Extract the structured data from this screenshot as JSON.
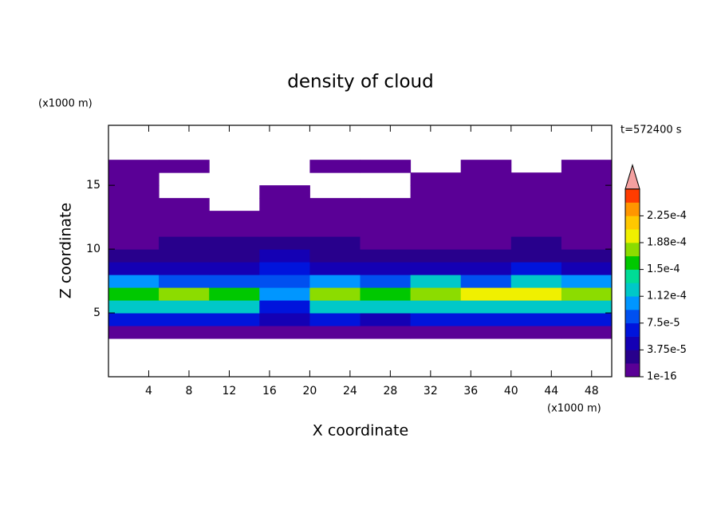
{
  "chart_data": {
    "type": "contour",
    "title": "density of cloud",
    "x_label": "X coordinate",
    "y_label": "Z coordinate",
    "x_unit": "(x1000 m)",
    "y_unit": "(x1000 m)",
    "annotation": "t=572400 s",
    "xlim": [
      0,
      50
    ],
    "ylim": [
      0,
      19.7
    ],
    "xticks": [
      4,
      8,
      12,
      16,
      20,
      24,
      28,
      32,
      36,
      40,
      44,
      48
    ],
    "yticks": [
      5,
      10,
      15
    ],
    "x": [
      2.5,
      7.5,
      12.5,
      17.5,
      22.5,
      27.5,
      32.5,
      37.5,
      42.5,
      47.5
    ],
    "y": [
      3.5,
      4.5,
      5.5,
      6.5,
      7.5,
      8.5,
      9.5,
      10.5,
      11.5,
      12.5,
      13.5,
      14.5,
      15.5,
      16.5
    ],
    "z": [
      [
        8e-06,
        8e-06,
        8e-06,
        8e-06,
        8e-06,
        8e-06,
        8e-06,
        8e-06,
        8e-06,
        8e-06
      ],
      [
        6e-05,
        6.5e-05,
        6e-05,
        4e-05,
        6e-05,
        5.5e-05,
        6e-05,
        6e-05,
        6.5e-05,
        6e-05
      ],
      [
        0.00012,
        0.000125,
        0.000115,
        7e-05,
        0.00013,
        0.00012,
        0.00012,
        0.000125,
        0.00013,
        0.00013
      ],
      [
        0.000165,
        0.00017,
        0.000155,
        0.0001,
        0.000185,
        0.00016,
        0.00017,
        0.00019,
        0.0002,
        0.00017
      ],
      [
        0.0001,
        9e-05,
        8e-05,
        9e-05,
        0.00011,
        8e-05,
        0.00012,
        9e-05,
        0.00012,
        0.0001
      ],
      [
        5e-05,
        4e-05,
        4.5e-05,
        7e-05,
        5e-05,
        4e-05,
        4e-05,
        5e-05,
        6e-05,
        5e-05
      ],
      [
        3e-05,
        2.5e-05,
        3e-05,
        5e-05,
        3e-05,
        2.5e-05,
        2e-05,
        3e-05,
        3.5e-05,
        3e-05
      ],
      [
        1.5e-05,
        2e-05,
        2e-05,
        3e-05,
        2e-05,
        1.5e-05,
        1e-05,
        1.5e-05,
        2e-05,
        1.5e-05
      ],
      [
        5e-06,
        5e-06,
        5e-06,
        5e-06,
        5e-06,
        5e-06,
        5e-06,
        5e-06,
        5e-06,
        5e-06
      ],
      [
        3e-06,
        3e-06,
        3e-06,
        3e-06,
        3e-06,
        3e-06,
        3e-06,
        3e-06,
        3e-06,
        3e-06
      ],
      [
        3e-06,
        3e-06,
        null,
        3e-06,
        3e-06,
        3e-06,
        3e-06,
        3e-06,
        3e-06,
        3e-06
      ],
      [
        3e-06,
        null,
        null,
        3e-06,
        null,
        null,
        3e-06,
        3e-06,
        3e-06,
        3e-06
      ],
      [
        3e-06,
        null,
        null,
        null,
        null,
        null,
        3e-06,
        3e-06,
        3e-06,
        3e-06
      ],
      [
        3e-06,
        3e-06,
        null,
        null,
        3e-06,
        3e-06,
        null,
        3e-06,
        null,
        3e-06
      ]
    ],
    "colorbar": {
      "ticks": [
        {
          "value": 1e-16,
          "label": "1e-16"
        },
        {
          "value": 3.75e-05,
          "label": "3.75e-5"
        },
        {
          "value": 7.5e-05,
          "label": "7.5e-5"
        },
        {
          "value": 0.000112,
          "label": "1.12e-4"
        },
        {
          "value": 0.00015,
          "label": "1.5e-4"
        },
        {
          "value": 0.000188,
          "label": "1.88e-4"
        },
        {
          "value": 0.000225,
          "label": "2.25e-4"
        }
      ],
      "colors": [
        "#5a0096",
        "#28008c",
        "#1400b4",
        "#0014dc",
        "#0050f0",
        "#0096ff",
        "#00c8c8",
        "#00dc96",
        "#00c800",
        "#8cdc00",
        "#f0f000",
        "#ffc800",
        "#ff9600",
        "#ff3c00"
      ],
      "extend_color": "#f4a0a0"
    }
  }
}
